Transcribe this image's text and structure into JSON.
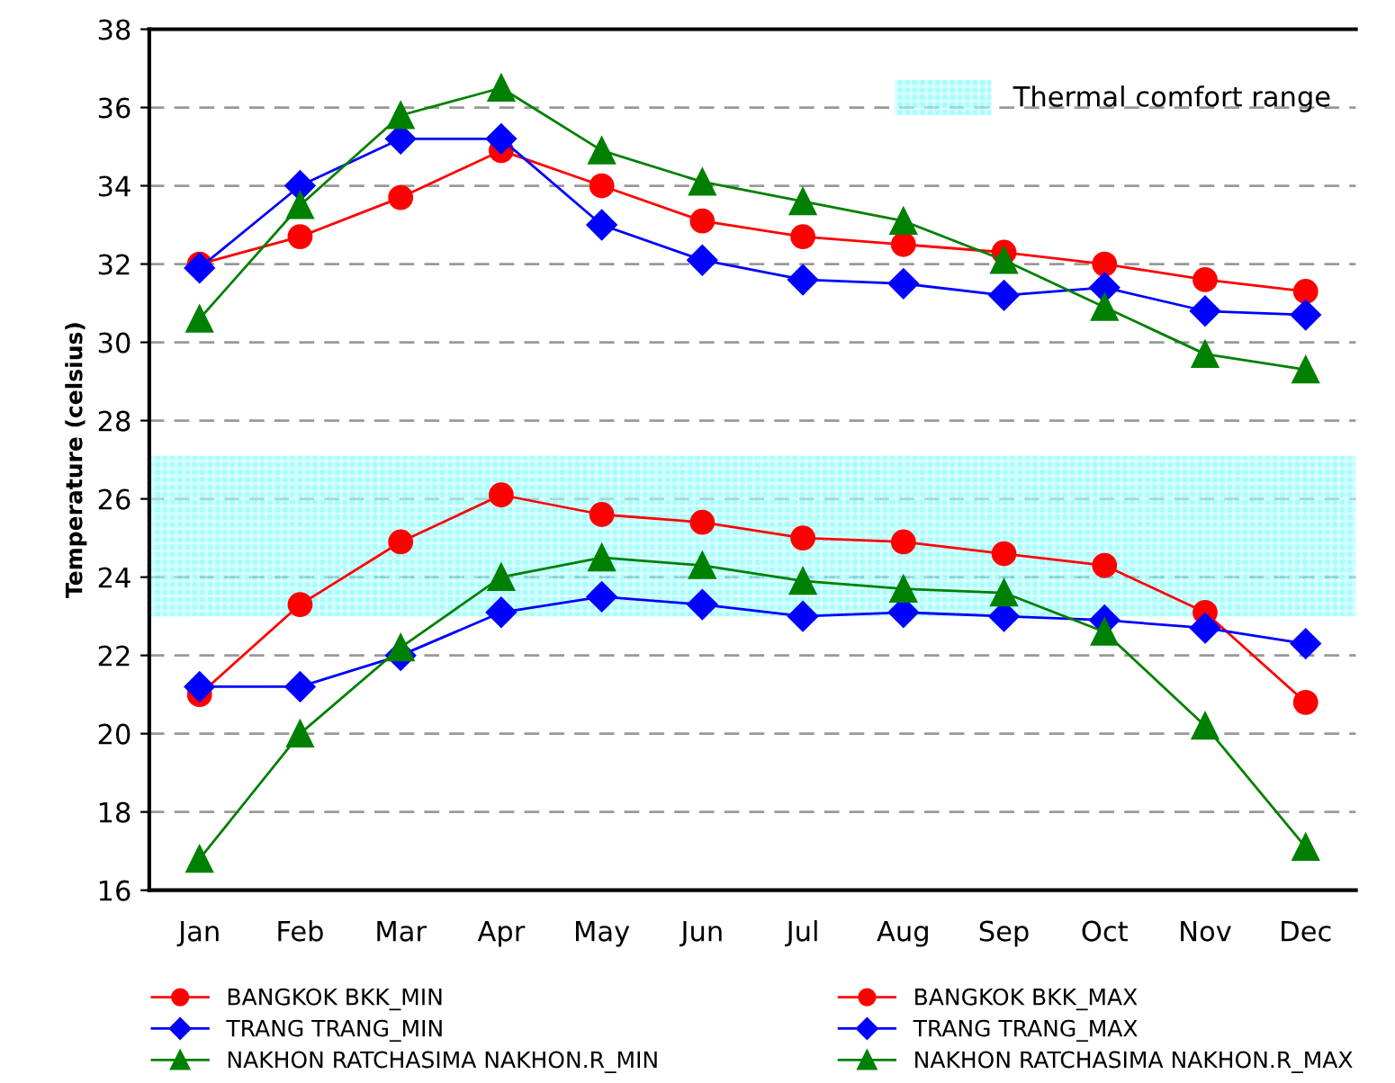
{
  "chart_data": {
    "type": "line",
    "ylabel": "Temperature (celsius)",
    "categories": [
      "Jan",
      "Feb",
      "Mar",
      "Apr",
      "May",
      "Jun",
      "Jul",
      "Aug",
      "Sep",
      "Oct",
      "Nov",
      "Dec"
    ],
    "series": [
      {
        "name": "BANGKOK BKK_MIN",
        "color": "#ff0000",
        "marker": "circle",
        "values": [
          21.0,
          23.3,
          24.9,
          26.1,
          25.6,
          25.4,
          25.0,
          24.9,
          24.6,
          24.3,
          23.1,
          20.8
        ]
      },
      {
        "name": "TRANG TRANG_MIN",
        "color": "#0000ff",
        "marker": "diamond",
        "values": [
          21.2,
          21.2,
          22.0,
          23.1,
          23.5,
          23.3,
          23.0,
          23.1,
          23.0,
          22.9,
          22.7,
          22.3
        ]
      },
      {
        "name": "NAKHON RATCHASIMA NAKHON.R_MIN",
        "color": "#008000",
        "marker": "triangle",
        "values": [
          16.8,
          20.0,
          22.2,
          24.0,
          24.5,
          24.3,
          23.9,
          23.7,
          23.6,
          22.6,
          20.2,
          17.1
        ]
      },
      {
        "name": "BANGKOK BKK_MAX",
        "color": "#ff0000",
        "marker": "circle",
        "values": [
          32.0,
          32.7,
          33.7,
          34.9,
          34.0,
          33.1,
          32.7,
          32.5,
          32.3,
          32.0,
          31.6,
          31.3
        ]
      },
      {
        "name": "TRANG TRANG_MAX",
        "color": "#0000ff",
        "marker": "diamond",
        "values": [
          31.9,
          34.0,
          35.2,
          35.2,
          33.0,
          32.1,
          31.6,
          31.5,
          31.2,
          31.4,
          30.8,
          30.7
        ]
      },
      {
        "name": "NAKHON RATCHASIMA NAKHON.R_MAX",
        "color": "#008000",
        "marker": "triangle",
        "values": [
          30.6,
          33.5,
          35.8,
          36.5,
          34.9,
          34.1,
          33.6,
          33.1,
          32.1,
          30.9,
          29.7,
          29.3
        ]
      }
    ],
    "bands": [
      {
        "axis": "y",
        "from": 23.0,
        "to": 27.1,
        "label": "Thermal comfort range",
        "color": "#66ffff"
      }
    ],
    "ylim": [
      16,
      38
    ],
    "yticks": [
      16,
      18,
      20,
      22,
      24,
      26,
      28,
      30,
      32,
      34,
      36,
      38
    ],
    "grid": "y",
    "legend": "bottom",
    "line_style": "solid"
  }
}
